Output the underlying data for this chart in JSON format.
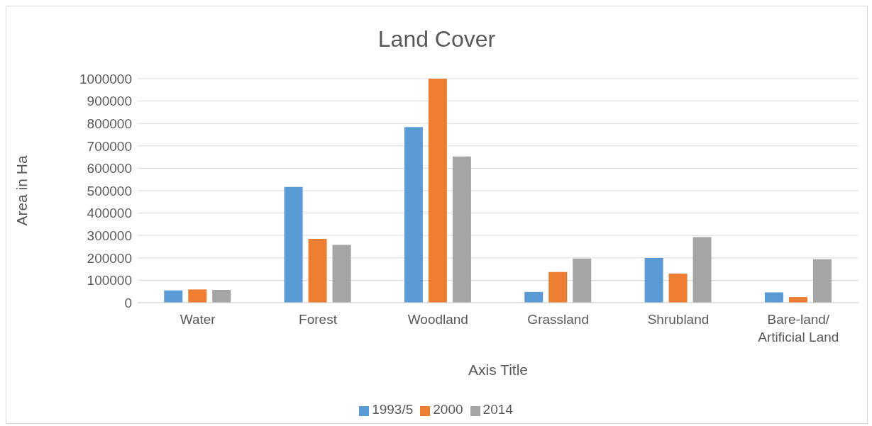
{
  "chart_data": {
    "type": "bar",
    "title": "Land Cover",
    "xlabel": "Axis Title",
    "ylabel": "Area in Ha",
    "categories": [
      "Water",
      "Forest",
      "Woodland",
      "Grassland",
      "Shrubland",
      "Bare-land/ Artificial Land"
    ],
    "series": [
      {
        "name": "1993/5",
        "color": "#5b9bd5",
        "values": [
          55000,
          517000,
          784000,
          48000,
          199000,
          46000
        ]
      },
      {
        "name": "2000",
        "color": "#ed7d31",
        "values": [
          59000,
          285000,
          1000000,
          137000,
          130000,
          25000
        ]
      },
      {
        "name": "2014",
        "color": "#a5a5a5",
        "values": [
          57000,
          258000,
          653000,
          197000,
          293000,
          194000
        ]
      }
    ],
    "ylim": [
      0,
      1000000
    ],
    "yticks": [
      0,
      100000,
      200000,
      300000,
      400000,
      500000,
      600000,
      700000,
      800000,
      900000,
      1000000
    ],
    "grid": "y",
    "legend": "bottom"
  }
}
